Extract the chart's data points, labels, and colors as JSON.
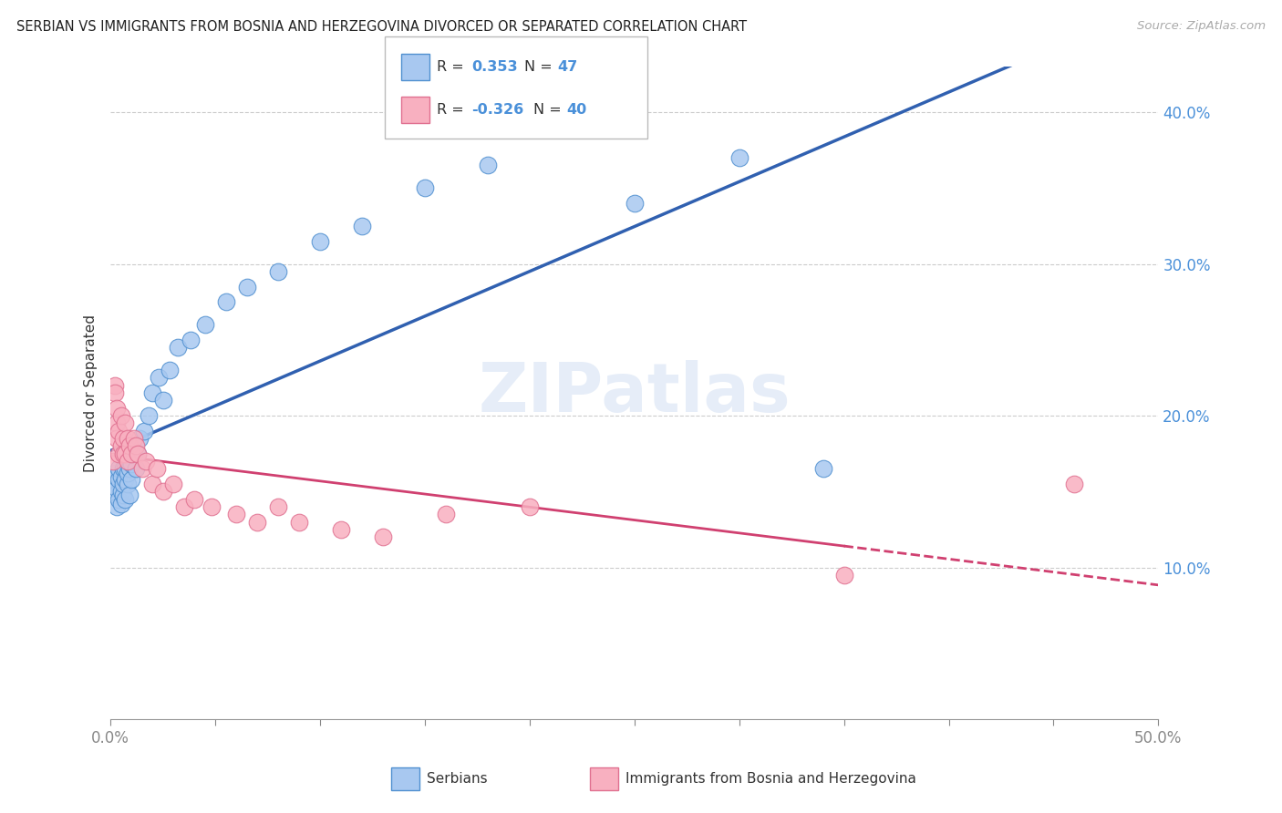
{
  "title": "SERBIAN VS IMMIGRANTS FROM BOSNIA AND HERZEGOVINA DIVORCED OR SEPARATED CORRELATION CHART",
  "source": "Source: ZipAtlas.com",
  "ylabel": "Divorced or Separated",
  "yticks": [
    "10.0%",
    "20.0%",
    "30.0%",
    "40.0%"
  ],
  "ytick_vals": [
    0.1,
    0.2,
    0.3,
    0.4
  ],
  "xlim": [
    0.0,
    0.5
  ],
  "ylim": [
    0.0,
    0.43
  ],
  "R_serbian": 0.353,
  "N_serbian": 47,
  "R_bosnian": -0.326,
  "N_bosnian": 40,
  "legend_label_1": "Serbians",
  "legend_label_2": "Immigrants from Bosnia and Herzegovina",
  "blue_color": "#a8c8f0",
  "blue_edge_color": "#5090d0",
  "blue_line_color": "#3060b0",
  "pink_color": "#f8b0c0",
  "pink_edge_color": "#e07090",
  "pink_line_color": "#d04070",
  "watermark": "ZIPatlas",
  "serbian_x": [
    0.001,
    0.002,
    0.002,
    0.003,
    0.003,
    0.003,
    0.004,
    0.004,
    0.004,
    0.005,
    0.005,
    0.005,
    0.006,
    0.006,
    0.006,
    0.007,
    0.007,
    0.007,
    0.008,
    0.008,
    0.009,
    0.009,
    0.01,
    0.01,
    0.011,
    0.012,
    0.013,
    0.014,
    0.016,
    0.018,
    0.02,
    0.023,
    0.025,
    0.028,
    0.032,
    0.038,
    0.045,
    0.055,
    0.065,
    0.08,
    0.1,
    0.12,
    0.15,
    0.18,
    0.25,
    0.3,
    0.34
  ],
  "serbian_y": [
    0.155,
    0.148,
    0.162,
    0.14,
    0.152,
    0.16,
    0.145,
    0.158,
    0.165,
    0.142,
    0.15,
    0.16,
    0.148,
    0.155,
    0.165,
    0.145,
    0.158,
    0.165,
    0.155,
    0.162,
    0.148,
    0.165,
    0.158,
    0.168,
    0.175,
    0.165,
    0.175,
    0.185,
    0.19,
    0.2,
    0.215,
    0.225,
    0.21,
    0.23,
    0.245,
    0.25,
    0.26,
    0.275,
    0.285,
    0.295,
    0.315,
    0.325,
    0.35,
    0.365,
    0.34,
    0.37,
    0.165
  ],
  "bosnian_x": [
    0.001,
    0.002,
    0.002,
    0.003,
    0.003,
    0.003,
    0.004,
    0.004,
    0.005,
    0.005,
    0.006,
    0.006,
    0.007,
    0.007,
    0.008,
    0.008,
    0.009,
    0.01,
    0.011,
    0.012,
    0.013,
    0.015,
    0.017,
    0.02,
    0.022,
    0.025,
    0.03,
    0.035,
    0.04,
    0.048,
    0.06,
    0.07,
    0.08,
    0.09,
    0.11,
    0.13,
    0.16,
    0.2,
    0.35,
    0.46
  ],
  "bosnian_y": [
    0.17,
    0.22,
    0.215,
    0.195,
    0.185,
    0.205,
    0.175,
    0.19,
    0.18,
    0.2,
    0.185,
    0.175,
    0.195,
    0.175,
    0.17,
    0.185,
    0.18,
    0.175,
    0.185,
    0.18,
    0.175,
    0.165,
    0.17,
    0.155,
    0.165,
    0.15,
    0.155,
    0.14,
    0.145,
    0.14,
    0.135,
    0.13,
    0.14,
    0.13,
    0.125,
    0.12,
    0.135,
    0.14,
    0.095,
    0.155
  ]
}
